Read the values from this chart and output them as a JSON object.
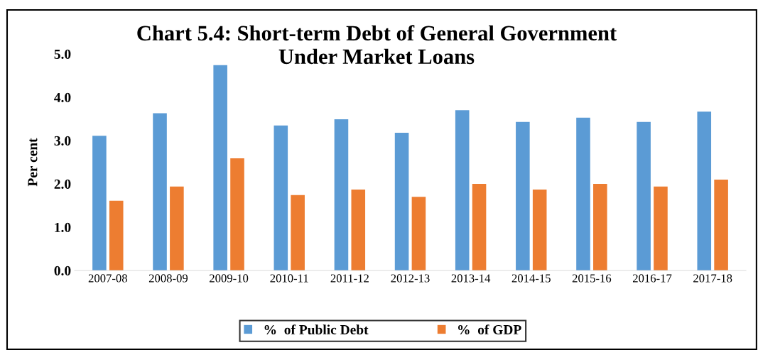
{
  "chart_data": {
    "type": "bar",
    "title": "Chart 5.4: Short-term Debt of General Government\nUnder Market Loans",
    "ylabel": "Per cent",
    "categories": [
      "2007-08",
      "2008-09",
      "2009-10",
      "2010-11",
      "2011-12",
      "2012-13",
      "2013-14",
      "2014-15",
      "2015-16",
      "2016-17",
      "2017-18"
    ],
    "series": [
      {
        "name": "%  of Public Debt",
        "color": "#5b9bd5",
        "values": [
          3.11,
          3.63,
          4.74,
          3.35,
          3.49,
          3.18,
          3.7,
          3.43,
          3.53,
          3.43,
          3.67
        ]
      },
      {
        "name": "%  of GDP",
        "color": "#ed7d31",
        "values": [
          1.61,
          1.94,
          2.59,
          1.74,
          1.87,
          1.7,
          2.0,
          1.87,
          2.0,
          1.94,
          2.1
        ]
      }
    ],
    "ylim": [
      0,
      5
    ],
    "yticks": [
      {
        "value": 0,
        "label": "0.0"
      },
      {
        "value": 1,
        "label": "1.0"
      },
      {
        "value": 2,
        "label": "2.0"
      },
      {
        "value": 3,
        "label": "3.0"
      },
      {
        "value": 4,
        "label": "4.0"
      },
      {
        "value": 5,
        "label": "5.0"
      }
    ],
    "grid": false,
    "legend": "bottom"
  }
}
